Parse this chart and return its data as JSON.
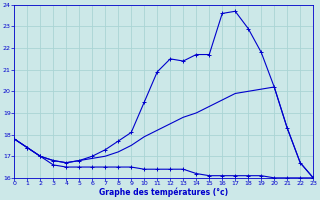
{
  "xlabel": "Graphe des températures (°c)",
  "bg_color": "#cce8e8",
  "grid_color": "#aad4d4",
  "line_color": "#0000cc",
  "x_hours": [
    0,
    1,
    2,
    3,
    4,
    5,
    6,
    7,
    8,
    9,
    10,
    11,
    12,
    13,
    14,
    15,
    16,
    17,
    18,
    19,
    20,
    21,
    22,
    23
  ],
  "line1_min": [
    17.8,
    17.4,
    17.0,
    16.6,
    16.5,
    16.5,
    16.5,
    16.5,
    16.5,
    16.5,
    16.4,
    16.4,
    16.4,
    16.4,
    16.2,
    16.1,
    16.1,
    16.1,
    16.1,
    16.1,
    16.0,
    16.0,
    16.0,
    16.0
  ],
  "line2_trend": [
    17.8,
    17.4,
    17.0,
    16.8,
    16.7,
    16.8,
    16.9,
    17.0,
    17.2,
    17.5,
    17.9,
    18.2,
    18.5,
    18.8,
    19.0,
    19.3,
    19.6,
    19.9,
    20.0,
    20.1,
    20.2,
    18.3,
    16.7,
    16.0
  ],
  "line3_max": [
    17.8,
    17.4,
    17.0,
    16.8,
    16.7,
    16.8,
    17.0,
    17.3,
    17.7,
    18.1,
    19.5,
    20.9,
    21.5,
    21.4,
    21.7,
    21.7,
    23.6,
    23.7,
    22.9,
    21.8,
    20.2,
    18.3,
    16.7,
    16.0
  ],
  "ylim": [
    16,
    24
  ],
  "xlim": [
    0,
    23
  ],
  "yticks": [
    16,
    17,
    18,
    19,
    20,
    21,
    22,
    23,
    24
  ],
  "xticks": [
    0,
    1,
    2,
    3,
    4,
    5,
    6,
    7,
    8,
    9,
    10,
    11,
    12,
    13,
    14,
    15,
    16,
    17,
    18,
    19,
    20,
    21,
    22,
    23
  ]
}
